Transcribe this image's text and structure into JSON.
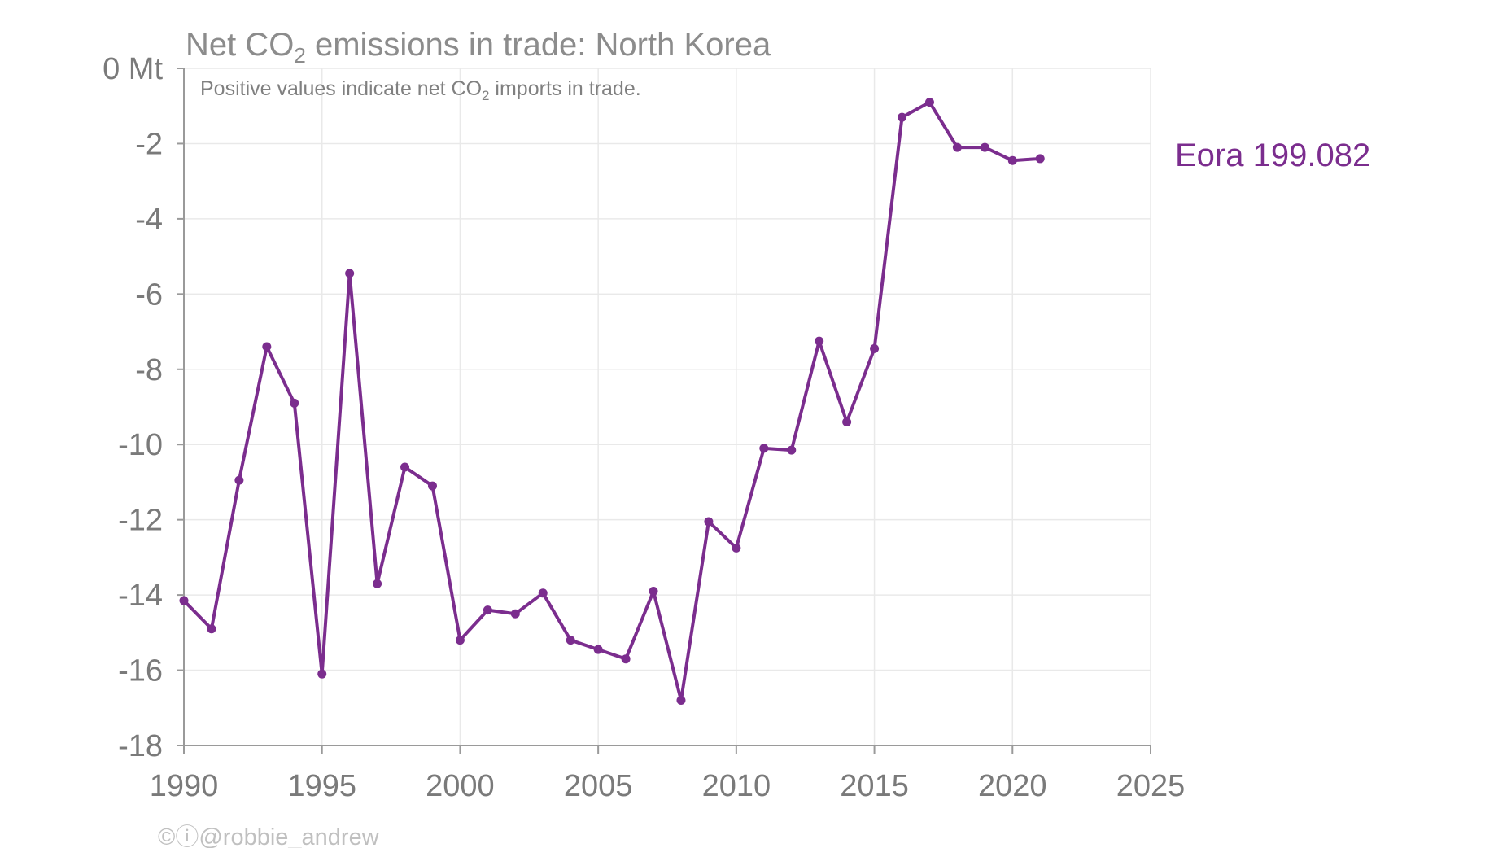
{
  "chart": {
    "title_main": "Net CO",
    "title_sub": "2",
    "title_rest": " emissions in trade: North Korea",
    "subtitle_main": "Positive values indicate net CO",
    "subtitle_sub": "2",
    "subtitle_rest": " imports in trade.",
    "credit": "©ⓘ@robbie_andrew",
    "series_label": "Eora 199.082"
  },
  "colors": {
    "series": "#7b2d8e",
    "text": "#7a7a7a",
    "grid": "#e9e9e9",
    "axis": "#9a9a9a"
  },
  "chart_data": {
    "type": "line",
    "title": "Net CO2 emissions in trade: North Korea",
    "subtitle": "Positive values indicate net CO2 imports in trade.",
    "ylabel": "Mt",
    "xlim": [
      1990,
      2025
    ],
    "ylim": [
      -18,
      0
    ],
    "x_ticks": [
      "1990",
      "1995",
      "2000",
      "2005",
      "2010",
      "2015",
      "2020",
      "2025"
    ],
    "y_ticks": [
      "0 Mt",
      "-2",
      "-4",
      "-6",
      "-8",
      "-10",
      "-12",
      "-14",
      "-16",
      "-18"
    ],
    "grid": true,
    "legend": "right, inline label",
    "series": [
      {
        "name": "Eora 199.082",
        "x": [
          1990,
          1991,
          1992,
          1993,
          1994,
          1995,
          1996,
          1997,
          1998,
          1999,
          2000,
          2001,
          2002,
          2003,
          2004,
          2005,
          2006,
          2007,
          2008,
          2009,
          2010,
          2011,
          2012,
          2013,
          2014,
          2015,
          2016,
          2017,
          2018,
          2019,
          2020,
          2021
        ],
        "values": [
          -14.15,
          -14.9,
          -10.95,
          -7.4,
          -8.9,
          -16.1,
          -5.45,
          -13.7,
          -10.6,
          -11.1,
          -15.2,
          -14.4,
          -14.5,
          -13.95,
          -15.2,
          -15.45,
          -15.7,
          -13.9,
          -16.8,
          -12.05,
          -12.75,
          -10.1,
          -10.15,
          -7.25,
          -9.4,
          -7.45,
          -1.3,
          -0.9,
          -2.1,
          -2.1,
          -2.45,
          -2.4
        ]
      }
    ]
  }
}
